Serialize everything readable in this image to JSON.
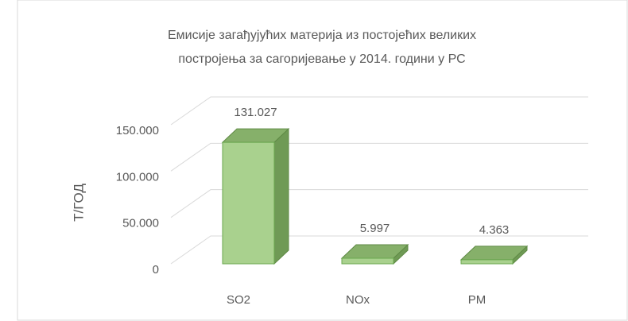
{
  "chart_data": {
    "type": "bar3d",
    "title": [
      "Емисије  загађујућих  материја из постојећих великих",
      "постројења за сагоријевање у 2014.  години  у РС"
    ],
    "y_label": "Т/ГОД",
    "categories": [
      "SO2",
      "NOx",
      "PM"
    ],
    "values": [
      131027,
      5997,
      4363
    ],
    "value_labels": [
      "131.027",
      "5.997",
      "4.363"
    ],
    "color": "#a9d18e",
    "ylim": [
      0,
      150000
    ],
    "yticks": [
      0,
      {
        "value": 50000,
        "label": "50.000"
      },
      {
        "value": 100000,
        "label": "100.000"
      },
      {
        "value": 150000,
        "label": "150.000"
      }
    ],
    "grid": true
  }
}
